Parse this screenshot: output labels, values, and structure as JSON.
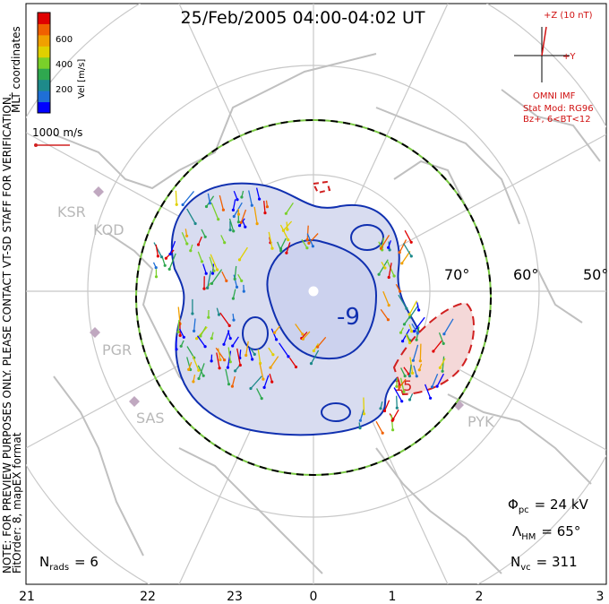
{
  "header": {
    "title": "25/Feb/2005 04:00-04:02 UT"
  },
  "colorbar": {
    "label": "Vel [m/s]",
    "ticks": [
      "600",
      "400",
      "200"
    ],
    "colors": [
      "#0000ff",
      "#1f6fd6",
      "#1e8a8a",
      "#2fa84f",
      "#7ad02a",
      "#e0d000",
      "#f0a000",
      "#f06000",
      "#e00000"
    ]
  },
  "coords_label": "MLT coordinates",
  "scale_vector": {
    "label": "1000 m/s"
  },
  "imf": {
    "z_label": "+Z (10 nT)",
    "y_label": "+Y",
    "source": "OMNI IMF",
    "model_line1": "Stat Mod: RG96",
    "model_line2": "Bz+, 6<BT<12",
    "color": "#d01010"
  },
  "notes": {
    "left_vertical": "NOTE: FOR PREVIEW PURPOSES ONLY. PLEASE CONTACT VT-SD STAFF FOR VERIFICATION.",
    "fit_order": "FitOrder: 8, mapEX format"
  },
  "stations": [
    "KSR",
    "KOD",
    "PGR",
    "SAS",
    "PYK"
  ],
  "latitudes": [
    "70°",
    "60°",
    "50°"
  ],
  "potential_labels": {
    "min": "-9",
    "max": "15"
  },
  "stats": {
    "pc_prefix": "Φ",
    "pc_sub": "pc",
    "pc_value": "= 24 kV",
    "hm_prefix": "Λ",
    "hm_sub": "HM",
    "hm_value": "= 65°",
    "vc_prefix": "N",
    "vc_sub": "vc",
    "vc_value": "= 311",
    "rads_prefix": "N",
    "rads_sub": "rads",
    "rads_value": "= 6"
  },
  "mlt_axis": [
    "21",
    "22",
    "23",
    "0",
    "1",
    "2",
    "3"
  ],
  "colors": {
    "map_lines": "#c8c8c8",
    "contour_neg": "#1030b0",
    "contour_pos": "#d02020",
    "neg_fill": "#d8dcf0",
    "pos_fill": "#f4d8d8",
    "boundary_green": "#7ac943"
  }
}
